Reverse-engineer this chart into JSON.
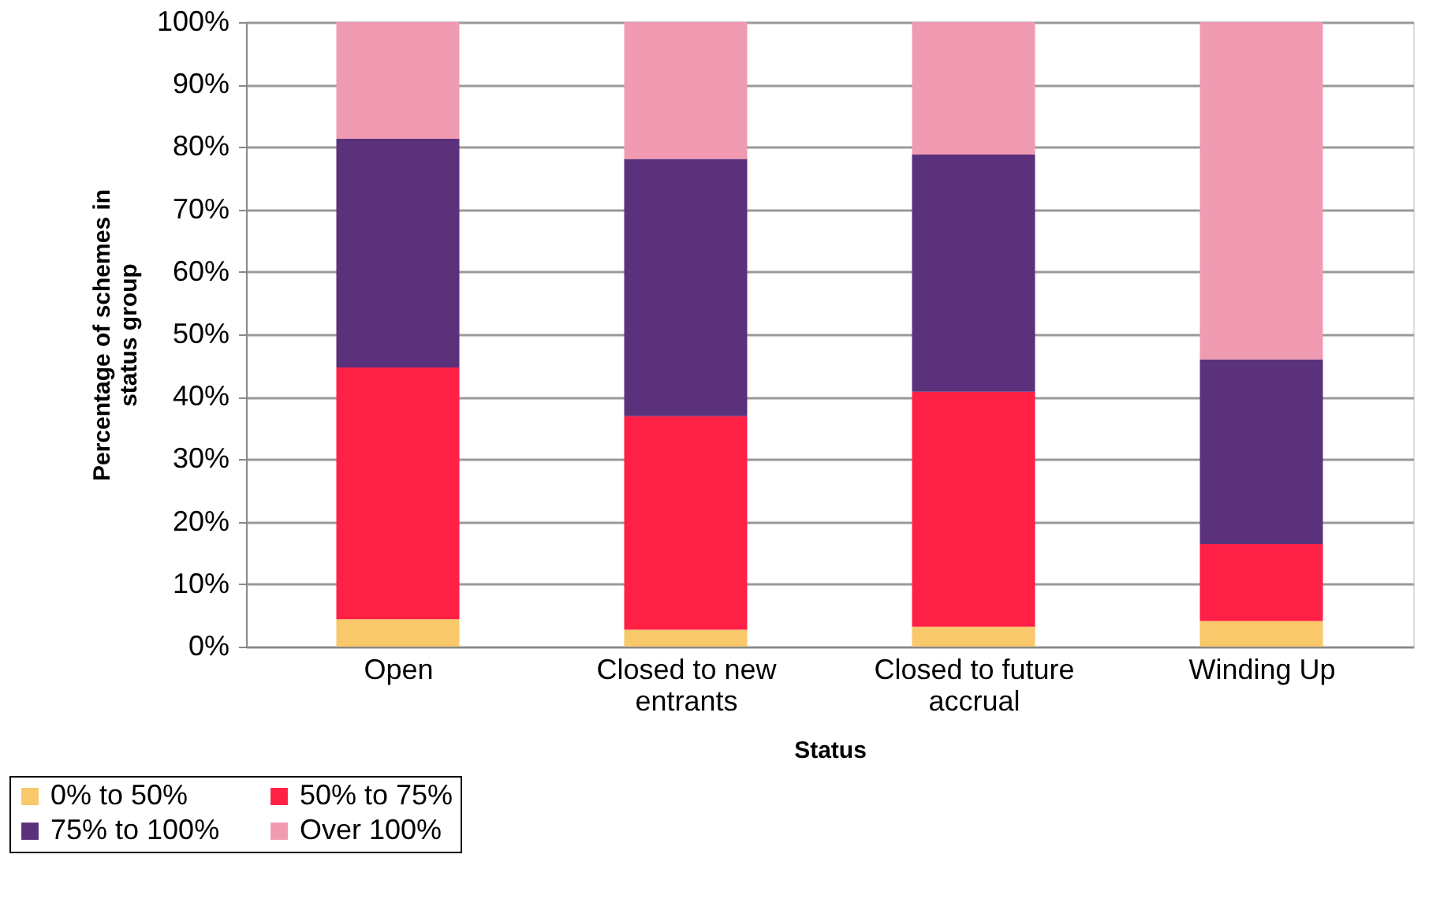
{
  "chart_data": {
    "type": "bar",
    "stacked": true,
    "categories": [
      "Open",
      "Closed to new entrants",
      "Closed to future accrual",
      "Winding Up"
    ],
    "series": [
      {
        "name": "0% to 50%",
        "color": "#f8c86a",
        "values": [
          4.4,
          2.7,
          3.2,
          4.1
        ]
      },
      {
        "name": "50% to 75%",
        "color": "#ff2046",
        "values": [
          40.3,
          34.2,
          37.6,
          12.3
        ]
      },
      {
        "name": "75% to 100%",
        "color": "#5b317c",
        "values": [
          36.6,
          41.2,
          38.0,
          29.6
        ]
      },
      {
        "name": "Over 100%",
        "color": "#f09bb2",
        "values": [
          18.7,
          21.9,
          21.2,
          54.0
        ]
      }
    ],
    "xlabel": "Status",
    "ylabel": "Percentage of schemes in status group",
    "ylim": [
      0,
      100
    ],
    "yticks": [
      {
        "value": 0,
        "label": "0%"
      },
      {
        "value": 10,
        "label": "10%"
      },
      {
        "value": 20,
        "label": "20%"
      },
      {
        "value": 30,
        "label": "30%"
      },
      {
        "value": 40,
        "label": "40%"
      },
      {
        "value": 50,
        "label": "50%"
      },
      {
        "value": 60,
        "label": "60%"
      },
      {
        "value": 70,
        "label": "70%"
      },
      {
        "value": 80,
        "label": "80%"
      },
      {
        "value": 90,
        "label": "90%"
      },
      {
        "value": 100,
        "label": "100%"
      }
    ],
    "grid": "y",
    "legend": "bottom left"
  }
}
